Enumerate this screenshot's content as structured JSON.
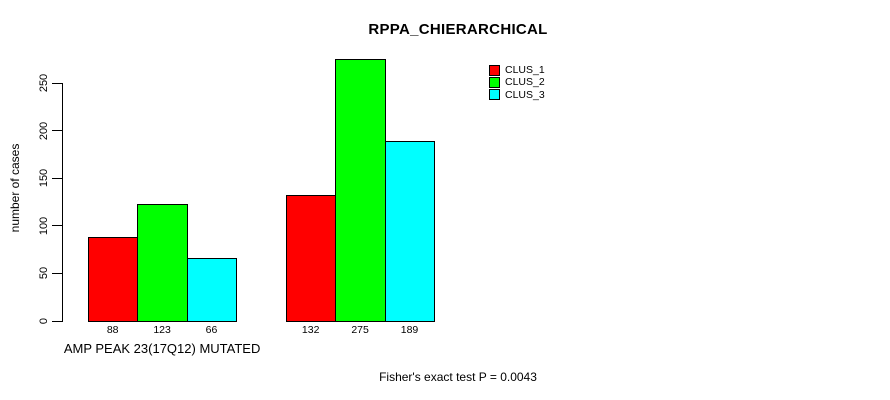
{
  "title": "RPPA_CHIERARCHICAL",
  "footnote": "Fisher's exact test P = 0.0043",
  "colors": {
    "background": "#ffffff",
    "axis": "#000000",
    "bar_border": "#000000",
    "clus_1": "#ff0000",
    "clus_2": "#00ff00",
    "clus_3": "#00ffff"
  },
  "chart_data": {
    "type": "bar",
    "title": "RPPA_CHIERARCHICAL",
    "xlabel": "",
    "ylabel": "number of cases",
    "ylim": [
      0,
      250
    ],
    "yticks": [
      0,
      50,
      100,
      150,
      200,
      250
    ],
    "grid": false,
    "legend_position": "top-right",
    "categories": [
      "AMP PEAK 23(17Q12) MUTATED",
      ""
    ],
    "series": [
      {
        "name": "CLUS_1",
        "color": "#ff0000",
        "values": [
          88,
          132
        ]
      },
      {
        "name": "CLUS_2",
        "color": "#00ff00",
        "values": [
          123,
          275
        ]
      },
      {
        "name": "CLUS_3",
        "color": "#00ffff",
        "values": [
          66,
          189
        ]
      }
    ],
    "bar_value_labels": [
      [
        88,
        123,
        66
      ],
      [
        132,
        275,
        189
      ]
    ],
    "annotation": "Fisher's exact test P = 0.0043"
  }
}
